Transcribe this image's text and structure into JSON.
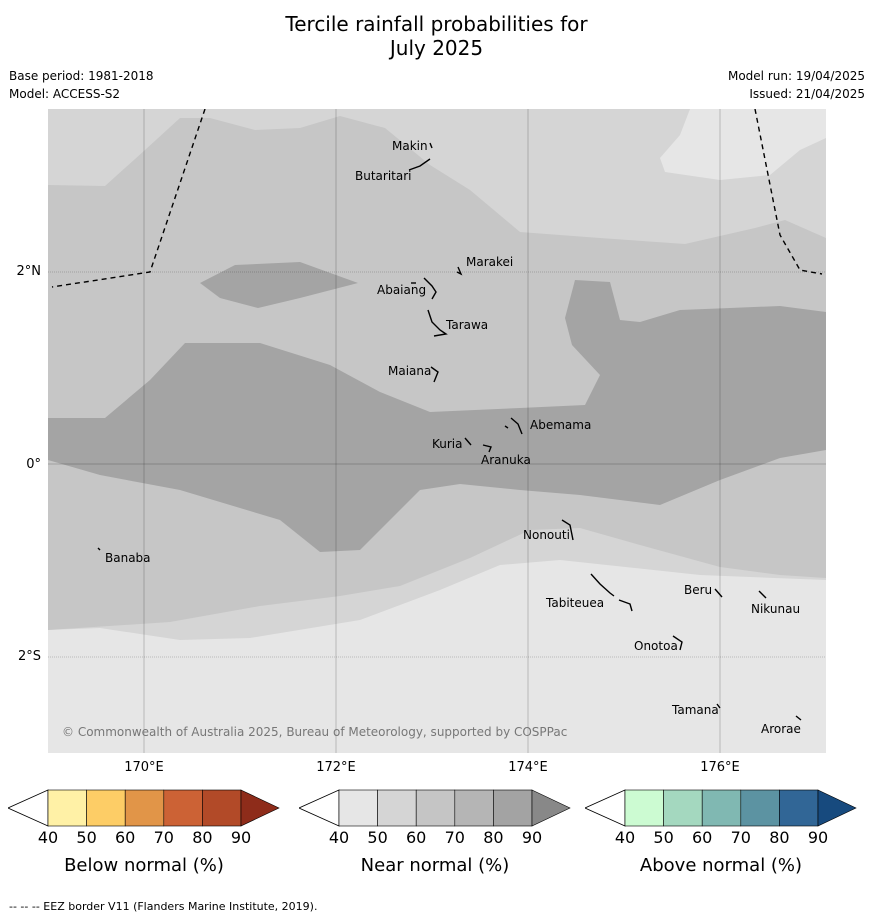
{
  "title_line1": "Tercile rainfall probabilities for",
  "title_line2": "July 2025",
  "base_period": "Base period: 1981-2018",
  "model": "Model: ACCESS-S2",
  "model_run": "Model run: 19/04/2025",
  "issued": "Issued: 21/04/2025",
  "lat_labels": [
    "2°N",
    "0°",
    "2°S"
  ],
  "lon_labels": [
    "170°E",
    "172°E",
    "174°E",
    "176°E"
  ],
  "places": [
    "Makin",
    "Butaritari",
    "Marakei",
    "Abaiang",
    "Tarawa",
    "Maiana",
    "Abemama",
    "Kuria",
    "Aranuka",
    "Nonouti",
    "Banaba",
    "Tabiteuea",
    "Beru",
    "Nikunau",
    "Onotoa",
    "Tamana",
    "Arorae"
  ],
  "copyright": "© Commonwealth of Australia 2025, Bureau of Meteorology, supported by COSPPac",
  "colorbars": [
    {
      "label": "Below normal (%)",
      "ticks": [
        "40",
        "50",
        "60",
        "70",
        "80",
        "90"
      ],
      "colors": [
        "#fff1a6",
        "#fdcd66",
        "#e19548",
        "#cc6235",
        "#b24a28",
        "#8e2c1a"
      ]
    },
    {
      "label": "Near normal (%)",
      "ticks": [
        "40",
        "50",
        "60",
        "70",
        "80",
        "90"
      ],
      "colors": [
        "#e6e6e6",
        "#d5d5d5",
        "#c5c5c5",
        "#b5b5b5",
        "#a3a3a3",
        "#888888"
      ]
    },
    {
      "label": "Above normal (%)",
      "ticks": [
        "40",
        "50",
        "60",
        "70",
        "80",
        "90"
      ],
      "colors": [
        "#ccfbd2",
        "#a4d8bf",
        "#80b8b2",
        "#5c93a2",
        "#316696",
        "#174a7e"
      ]
    }
  ],
  "footnote": "--  --  -- EEZ border V11 (Flanders Marine Institute, 2019).",
  "map_colors": {
    "c40": "#e6e6e6",
    "c50": "#d5d5d5",
    "c60": "#c6c6c6",
    "c70": "#a4a4a4"
  }
}
